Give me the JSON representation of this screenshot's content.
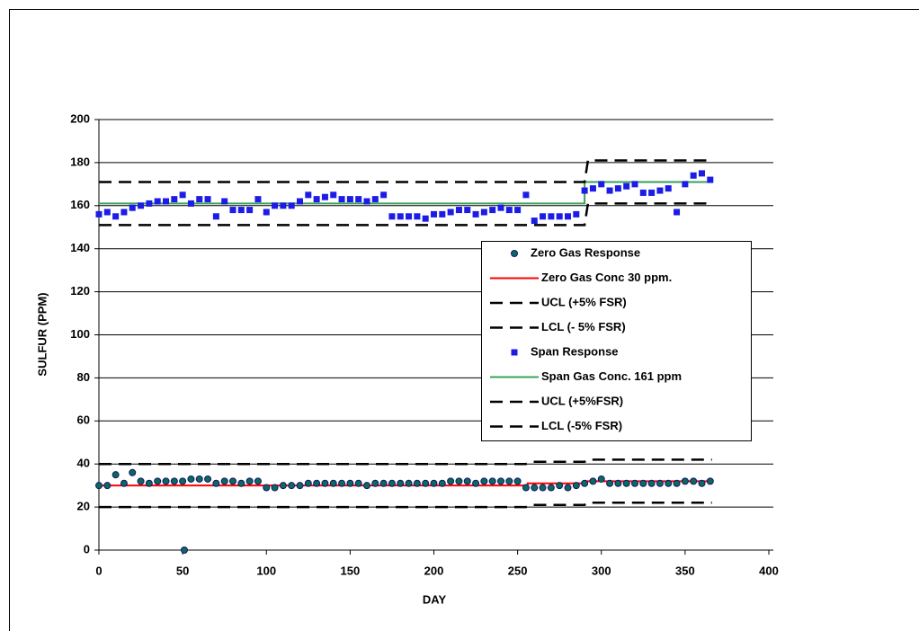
{
  "chart_data": {
    "type": "scatter",
    "xlabel": "DAY",
    "ylabel": "SULFUR (PPM)",
    "xlim": [
      0,
      400
    ],
    "xticks": [
      0,
      50,
      100,
      150,
      200,
      250,
      300,
      350,
      400
    ],
    "ylim": [
      0,
      200
    ],
    "yticks": [
      0,
      20,
      40,
      60,
      80,
      100,
      120,
      140,
      160,
      180,
      200
    ],
    "grid": true,
    "legend_position": "right",
    "series": [
      {
        "name": "Zero Gas Response",
        "color": "#0b6b5a",
        "style": "markers",
        "marker": "circle",
        "x": [
          0,
          5,
          10,
          15,
          20,
          25,
          30,
          35,
          40,
          45,
          50,
          51,
          55,
          60,
          65,
          70,
          75,
          80,
          85,
          90,
          95,
          100,
          105,
          110,
          115,
          120,
          125,
          130,
          135,
          140,
          145,
          150,
          155,
          160,
          165,
          170,
          175,
          180,
          185,
          190,
          195,
          200,
          205,
          210,
          215,
          220,
          225,
          230,
          235,
          240,
          245,
          250,
          255,
          260,
          265,
          270,
          275,
          280,
          285,
          290,
          295,
          300,
          305,
          310,
          315,
          320,
          325,
          330,
          335,
          340,
          345,
          350,
          355,
          360,
          365
        ],
        "values": [
          30,
          30,
          35,
          31,
          36,
          32,
          31,
          32,
          32,
          32,
          32,
          0,
          33,
          33,
          33,
          31,
          32,
          32,
          31,
          32,
          32,
          29,
          29,
          30,
          30,
          30,
          31,
          31,
          31,
          31,
          31,
          31,
          31,
          30,
          31,
          31,
          31,
          31,
          31,
          31,
          31,
          31,
          31,
          32,
          32,
          32,
          31,
          32,
          32,
          32,
          32,
          32,
          29,
          29,
          29,
          29,
          30,
          29,
          30,
          31,
          32,
          33,
          31,
          31,
          31,
          31,
          31,
          31,
          31,
          31,
          31,
          32,
          32,
          31,
          32
        ]
      },
      {
        "name": "Zero Gas Conc 30 ppm.",
        "color": "#ff0000",
        "style": "line",
        "dash": false,
        "x": [
          0,
          256,
          256,
          290,
          290,
          366
        ],
        "values": [
          30,
          30,
          31,
          31,
          32,
          32
        ]
      },
      {
        "name": "UCL (+5% FSR)",
        "color": "#000000",
        "style": "line",
        "dash": true,
        "x": [
          0,
          255,
          258,
          290,
          292,
          366
        ],
        "values": [
          40,
          40,
          41,
          41,
          42,
          42
        ]
      },
      {
        "name": "LCL (- 5% FSR)",
        "color": "#000000",
        "style": "line",
        "dash": true,
        "x": [
          0,
          255,
          258,
          290,
          292,
          366
        ],
        "values": [
          20,
          20,
          21,
          21,
          22,
          22
        ]
      },
      {
        "name": "Span Response",
        "color": "#1c1ce6",
        "style": "markers",
        "marker": "square",
        "x": [
          0,
          5,
          10,
          15,
          20,
          25,
          30,
          35,
          40,
          45,
          50,
          55,
          60,
          65,
          70,
          75,
          80,
          85,
          90,
          95,
          100,
          105,
          110,
          115,
          120,
          125,
          130,
          135,
          140,
          145,
          150,
          155,
          160,
          165,
          170,
          175,
          180,
          185,
          190,
          195,
          200,
          205,
          210,
          215,
          220,
          225,
          230,
          235,
          240,
          245,
          250,
          255,
          260,
          265,
          270,
          275,
          280,
          285,
          290,
          295,
          300,
          305,
          310,
          315,
          320,
          325,
          330,
          335,
          340,
          345,
          350,
          355,
          360,
          365
        ],
        "values": [
          156,
          157,
          155,
          157,
          159,
          160,
          161,
          162,
          162,
          163,
          165,
          161,
          163,
          163,
          155,
          162,
          158,
          158,
          158,
          163,
          157,
          160,
          160,
          160,
          162,
          165,
          163,
          164,
          165,
          163,
          163,
          163,
          162,
          163,
          165,
          155,
          155,
          155,
          155,
          154,
          156,
          156,
          157,
          158,
          158,
          156,
          157,
          158,
          159,
          158,
          158,
          165,
          153,
          155,
          155,
          155,
          155,
          156,
          167,
          168,
          170,
          167,
          168,
          169,
          170,
          166,
          166,
          167,
          168,
          157,
          170,
          174,
          175,
          172
        ]
      },
      {
        "name": "Span Gas Conc. 161 ppm",
        "color": "#3aa05a",
        "style": "line",
        "dash": false,
        "x": [
          0,
          290,
          290,
          366
        ],
        "values": [
          161,
          161,
          171,
          171
        ]
      },
      {
        "name": "UCL (+5%FSR)",
        "color": "#000000",
        "style": "line",
        "dash": true,
        "x": [
          0,
          290,
          292,
          366
        ],
        "values": [
          171,
          171,
          181,
          181
        ]
      },
      {
        "name": "LCL (-5% FSR)",
        "color": "#000000",
        "style": "line",
        "dash": true,
        "x": [
          0,
          290,
          292,
          366
        ],
        "values": [
          151,
          151,
          161,
          161
        ]
      }
    ]
  }
}
